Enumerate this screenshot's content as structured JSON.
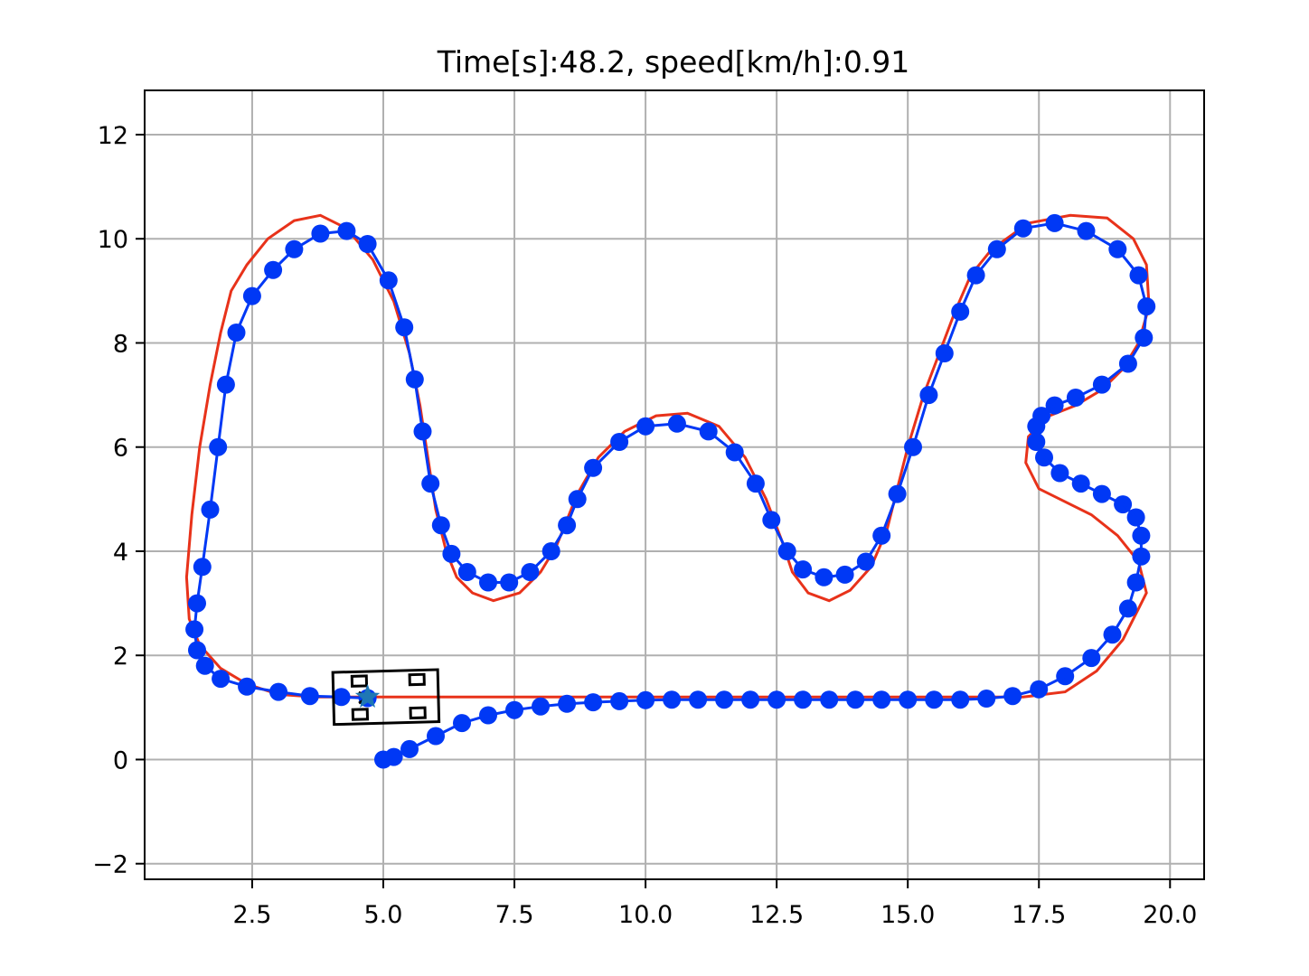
{
  "chart_data": {
    "type": "line",
    "title": "Time[s]:48.2, speed[km/h]:0.91",
    "xlabel": "",
    "ylabel": "",
    "xlim": [
      0.45,
      20.65
    ],
    "ylim": [
      -2.3,
      12.85
    ],
    "xticks": [
      "2.5",
      "5.0",
      "7.5",
      "10.0",
      "12.5",
      "15.0",
      "17.5",
      "20.0"
    ],
    "xtick_values": [
      2.5,
      5.0,
      7.5,
      10.0,
      12.5,
      15.0,
      17.5,
      20.0
    ],
    "yticks": [
      "−2",
      "0",
      "2",
      "4",
      "6",
      "8",
      "10",
      "12"
    ],
    "ytick_values": [
      -2,
      0,
      2,
      4,
      6,
      8,
      10,
      12
    ],
    "grid": true,
    "colors": {
      "reference": "#e8321a",
      "trajectory": "#0038f5",
      "vehicle": "#000000",
      "goal": "#1f77b4"
    },
    "series": [
      {
        "role": "reference-path",
        "x": [
          4.7,
          6.0,
          8.0,
          10.0,
          12.0,
          14.0,
          16.0,
          17.2,
          18.0,
          18.6,
          19.1,
          19.4,
          19.55,
          19.4,
          19.0,
          18.5,
          17.9,
          17.5,
          17.25,
          17.3,
          17.7,
          18.2,
          18.7,
          19.1,
          19.4,
          19.6,
          19.55,
          19.3,
          18.8,
          18.1,
          17.3,
          16.6,
          16.2,
          15.9,
          15.6,
          15.3,
          15.0,
          14.8,
          14.6,
          14.3,
          13.9,
          13.5,
          13.1,
          12.8,
          12.6,
          12.3,
          11.9,
          11.4,
          10.8,
          10.2,
          9.6,
          9.1,
          8.7,
          8.5,
          8.3,
          8.0,
          7.6,
          7.1,
          6.7,
          6.4,
          6.2,
          6.0,
          5.85,
          5.7,
          5.5,
          5.2,
          4.8,
          4.3,
          3.8,
          3.3,
          2.8,
          2.4,
          2.1,
          1.9,
          1.7,
          1.5,
          1.35,
          1.25,
          1.3,
          1.5,
          1.9,
          2.4,
          3.0,
          3.7,
          4.7
        ],
        "y": [
          1.2,
          1.2,
          1.2,
          1.2,
          1.2,
          1.2,
          1.2,
          1.2,
          1.3,
          1.7,
          2.3,
          2.9,
          3.2,
          3.8,
          4.3,
          4.7,
          5.0,
          5.2,
          5.7,
          6.2,
          6.6,
          6.8,
          7.1,
          7.5,
          8.0,
          8.7,
          9.5,
          10.0,
          10.4,
          10.45,
          10.3,
          9.8,
          9.3,
          8.6,
          7.8,
          7.0,
          6.0,
          5.2,
          4.4,
          3.7,
          3.25,
          3.05,
          3.2,
          3.6,
          4.2,
          5.0,
          5.8,
          6.4,
          6.65,
          6.6,
          6.3,
          5.8,
          5.1,
          4.6,
          4.1,
          3.6,
          3.2,
          3.05,
          3.2,
          3.5,
          4.0,
          4.8,
          5.8,
          6.8,
          7.8,
          8.8,
          9.6,
          10.2,
          10.45,
          10.35,
          10.0,
          9.5,
          9.0,
          8.2,
          7.2,
          6.0,
          4.7,
          3.5,
          2.7,
          2.2,
          1.75,
          1.45,
          1.25,
          1.2,
          1.2
        ]
      },
      {
        "role": "trajectory",
        "x": [
          5.0,
          5.2,
          5.5,
          6.0,
          6.5,
          7.0,
          7.5,
          8.0,
          8.5,
          9.0,
          9.5,
          10.0,
          10.5,
          11.0,
          11.5,
          12.0,
          12.5,
          13.0,
          13.5,
          14.0,
          14.5,
          15.0,
          15.5,
          16.0,
          16.5,
          17.0,
          17.5,
          18.0,
          18.5,
          18.9,
          19.2,
          19.35,
          19.45,
          19.45,
          19.35,
          19.1,
          18.7,
          18.3,
          17.9,
          17.6,
          17.45,
          17.45,
          17.55,
          17.8,
          18.2,
          18.7,
          19.2,
          19.5,
          19.55,
          19.4,
          19.0,
          18.4,
          17.8,
          17.2,
          16.7,
          16.3,
          16.0,
          15.7,
          15.4,
          15.1,
          14.8,
          14.5,
          14.2,
          13.8,
          13.4,
          13.0,
          12.7,
          12.4,
          12.1,
          11.7,
          11.2,
          10.6,
          10.0,
          9.5,
          9.0,
          8.7,
          8.5,
          8.2,
          7.8,
          7.4,
          7.0,
          6.6,
          6.3,
          6.1,
          5.9,
          5.75,
          5.6,
          5.4,
          5.1,
          4.7,
          4.3,
          3.8,
          3.3,
          2.9,
          2.5,
          2.2,
          2.0,
          1.85,
          1.7,
          1.55,
          1.45,
          1.4,
          1.45,
          1.6,
          1.9,
          2.4,
          3.0,
          3.6,
          4.2,
          4.7
        ],
        "y": [
          0.0,
          0.05,
          0.2,
          0.45,
          0.7,
          0.85,
          0.95,
          1.02,
          1.07,
          1.1,
          1.12,
          1.14,
          1.15,
          1.15,
          1.15,
          1.15,
          1.15,
          1.15,
          1.15,
          1.15,
          1.15,
          1.15,
          1.15,
          1.15,
          1.17,
          1.22,
          1.35,
          1.6,
          1.95,
          2.4,
          2.9,
          3.4,
          3.9,
          4.3,
          4.65,
          4.9,
          5.1,
          5.3,
          5.5,
          5.8,
          6.1,
          6.4,
          6.6,
          6.8,
          6.95,
          7.2,
          7.6,
          8.1,
          8.7,
          9.3,
          9.8,
          10.15,
          10.3,
          10.2,
          9.8,
          9.3,
          8.6,
          7.8,
          7.0,
          6.0,
          5.1,
          4.3,
          3.8,
          3.55,
          3.5,
          3.65,
          4.0,
          4.6,
          5.3,
          5.9,
          6.3,
          6.45,
          6.4,
          6.1,
          5.6,
          5.0,
          4.5,
          4.0,
          3.6,
          3.4,
          3.4,
          3.6,
          3.95,
          4.5,
          5.3,
          6.3,
          7.3,
          8.3,
          9.2,
          9.9,
          10.15,
          10.1,
          9.8,
          9.4,
          8.9,
          8.2,
          7.2,
          6.0,
          4.8,
          3.7,
          3.0,
          2.5,
          2.1,
          1.8,
          1.55,
          1.4,
          1.3,
          1.22,
          1.2,
          1.18
        ]
      }
    ],
    "vehicle": {
      "x": 5.05,
      "y": 1.2,
      "length": 2.0,
      "width": 1.0,
      "heading_deg": 1.5
    },
    "goal": {
      "x": 4.7,
      "y": 1.2,
      "marker": "star"
    }
  }
}
